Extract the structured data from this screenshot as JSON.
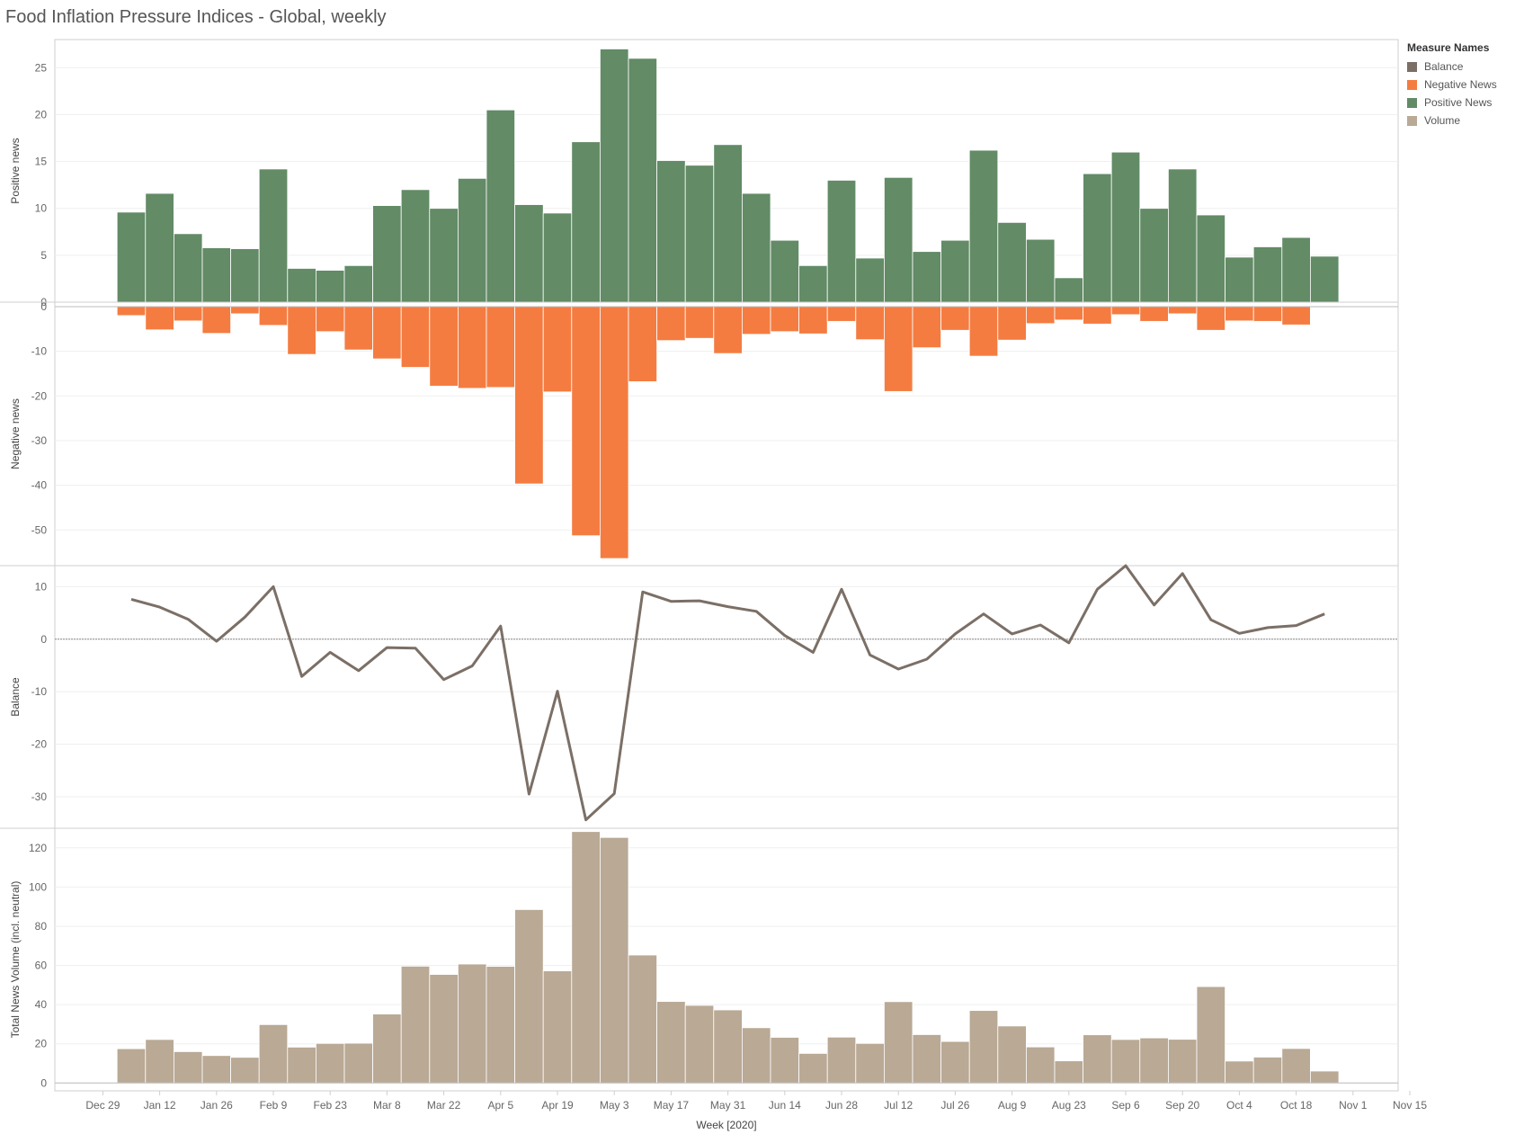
{
  "title": "Food Inflation Pressure Indices - Global, weekly",
  "legend": {
    "title": "Measure Names",
    "items": [
      {
        "label": "Balance",
        "color": "#7b6f66"
      },
      {
        "label": "Negative News",
        "color": "#f47c41"
      },
      {
        "label": "Positive News",
        "color": "#628b66"
      },
      {
        "label": "Volume",
        "color": "#b9a995"
      }
    ]
  },
  "chart_data": {
    "type": "bar",
    "xlabel": "Week [2020]",
    "x_tick_labels": [
      "Dec 29",
      "Jan 12",
      "Jan 26",
      "Feb 9",
      "Feb 23",
      "Mar 8",
      "Mar 22",
      "Apr 5",
      "Apr 19",
      "May 3",
      "May 17",
      "May 31",
      "Jun 14",
      "Jun 28",
      "Jul 12",
      "Jul 26",
      "Aug 9",
      "Aug 23",
      "Sep 6",
      "Sep 20",
      "Oct 4",
      "Oct 18",
      "Nov 1",
      "Nov 15"
    ],
    "weeks": [
      "Jan 5",
      "Jan 12",
      "Jan 19",
      "Jan 26",
      "Feb 2",
      "Feb 9",
      "Feb 16",
      "Feb 23",
      "Mar 1",
      "Mar 8",
      "Mar 15",
      "Mar 22",
      "Mar 29",
      "Apr 5",
      "Apr 12",
      "Apr 19",
      "Apr 26",
      "May 3",
      "May 10",
      "May 17",
      "May 24",
      "May 31",
      "Jun 7",
      "Jun 14",
      "Jun 21",
      "Jun 28",
      "Jul 5",
      "Jul 12",
      "Jul 19",
      "Jul 26",
      "Aug 2",
      "Aug 9",
      "Aug 16",
      "Aug 23",
      "Aug 30",
      "Sep 6",
      "Sep 13",
      "Sep 20",
      "Sep 27",
      "Oct 4",
      "Oct 11",
      "Oct 18",
      "Oct 25"
    ],
    "panels": [
      {
        "ylabel": "Positive news",
        "type": "bar",
        "series": "Positive News",
        "ylim": [
          0,
          28
        ],
        "ticks": [
          0,
          5,
          10,
          15,
          20,
          25
        ],
        "values": [
          9.6,
          11.6,
          7.3,
          5.8,
          5.7,
          14.2,
          3.6,
          3.4,
          3.9,
          10.3,
          12.0,
          10.0,
          13.2,
          20.5,
          10.4,
          9.5,
          17.1,
          27.0,
          26.0,
          15.1,
          14.6,
          16.8,
          11.6,
          6.6,
          3.9,
          13.0,
          4.7,
          13.3,
          5.4,
          6.6,
          16.2,
          8.5,
          6.7,
          2.6,
          13.7,
          16.0,
          10.0,
          14.2,
          9.3,
          4.8,
          5.9,
          6.9,
          4.9
        ]
      },
      {
        "ylabel": "Negative news",
        "type": "bar",
        "series": "Negative News",
        "ylim": [
          -58,
          1
        ],
        "ticks": [
          0,
          -10,
          -20,
          -30,
          -40,
          -50
        ],
        "values": [
          -2.0,
          -5.2,
          -3.2,
          -6.0,
          -1.6,
          -4.2,
          -10.7,
          -5.6,
          -9.7,
          -11.7,
          -13.6,
          -17.8,
          -18.3,
          -18.1,
          -39.7,
          -19.1,
          -51.3,
          -56.4,
          -16.8,
          -7.6,
          -7.1,
          -10.5,
          -6.2,
          -5.6,
          -6.1,
          -3.3,
          -7.4,
          -19.0,
          -9.2,
          -5.3,
          -11.1,
          -7.5,
          -3.8,
          -3.0,
          -3.9,
          -1.8,
          -3.3,
          -1.6,
          -5.3,
          -3.2,
          -3.3,
          -4.1,
          -0.2
        ]
      },
      {
        "ylabel": "Balance",
        "type": "line",
        "series": "Balance",
        "ylim": [
          -36,
          14
        ],
        "ticks": [
          10,
          0,
          -10,
          -20,
          -30
        ],
        "values": [
          7.6,
          6.1,
          3.8,
          -0.4,
          4.2,
          10.0,
          -7.1,
          -2.5,
          -6.0,
          -1.6,
          -1.7,
          -7.7,
          -5.1,
          2.5,
          -29.5,
          -9.9,
          -34.4,
          -29.4,
          9.0,
          7.2,
          7.3,
          6.2,
          5.3,
          0.7,
          -2.5,
          9.5,
          -3.0,
          -5.7,
          -3.8,
          1.0,
          4.8,
          1.0,
          2.7,
          -0.7,
          9.5,
          14.0,
          6.5,
          12.5,
          3.7,
          1.1,
          2.2,
          2.6,
          4.8
        ]
      },
      {
        "ylabel": "Total News Volume (incl. neutral)",
        "type": "bar",
        "series": "Volume",
        "ylim": [
          -4,
          130
        ],
        "ticks": [
          0,
          20,
          40,
          60,
          80,
          100,
          120
        ],
        "values": [
          17.5,
          22.2,
          16.0,
          14.0,
          13.1,
          29.8,
          18.3,
          20.2,
          20.3,
          35.2,
          59.6,
          55.4,
          60.7,
          59.5,
          88.5,
          57.2,
          128.3,
          125.3,
          65.3,
          41.6,
          39.6,
          37.3,
          28.2,
          23.3,
          15.1,
          23.4,
          20.2,
          41.5,
          24.7,
          21.2,
          37.0,
          29.1,
          18.4,
          11.3,
          24.6,
          22.2,
          23.0,
          22.3,
          49.2,
          11.2,
          13.2,
          17.6,
          6.1
        ]
      }
    ]
  }
}
